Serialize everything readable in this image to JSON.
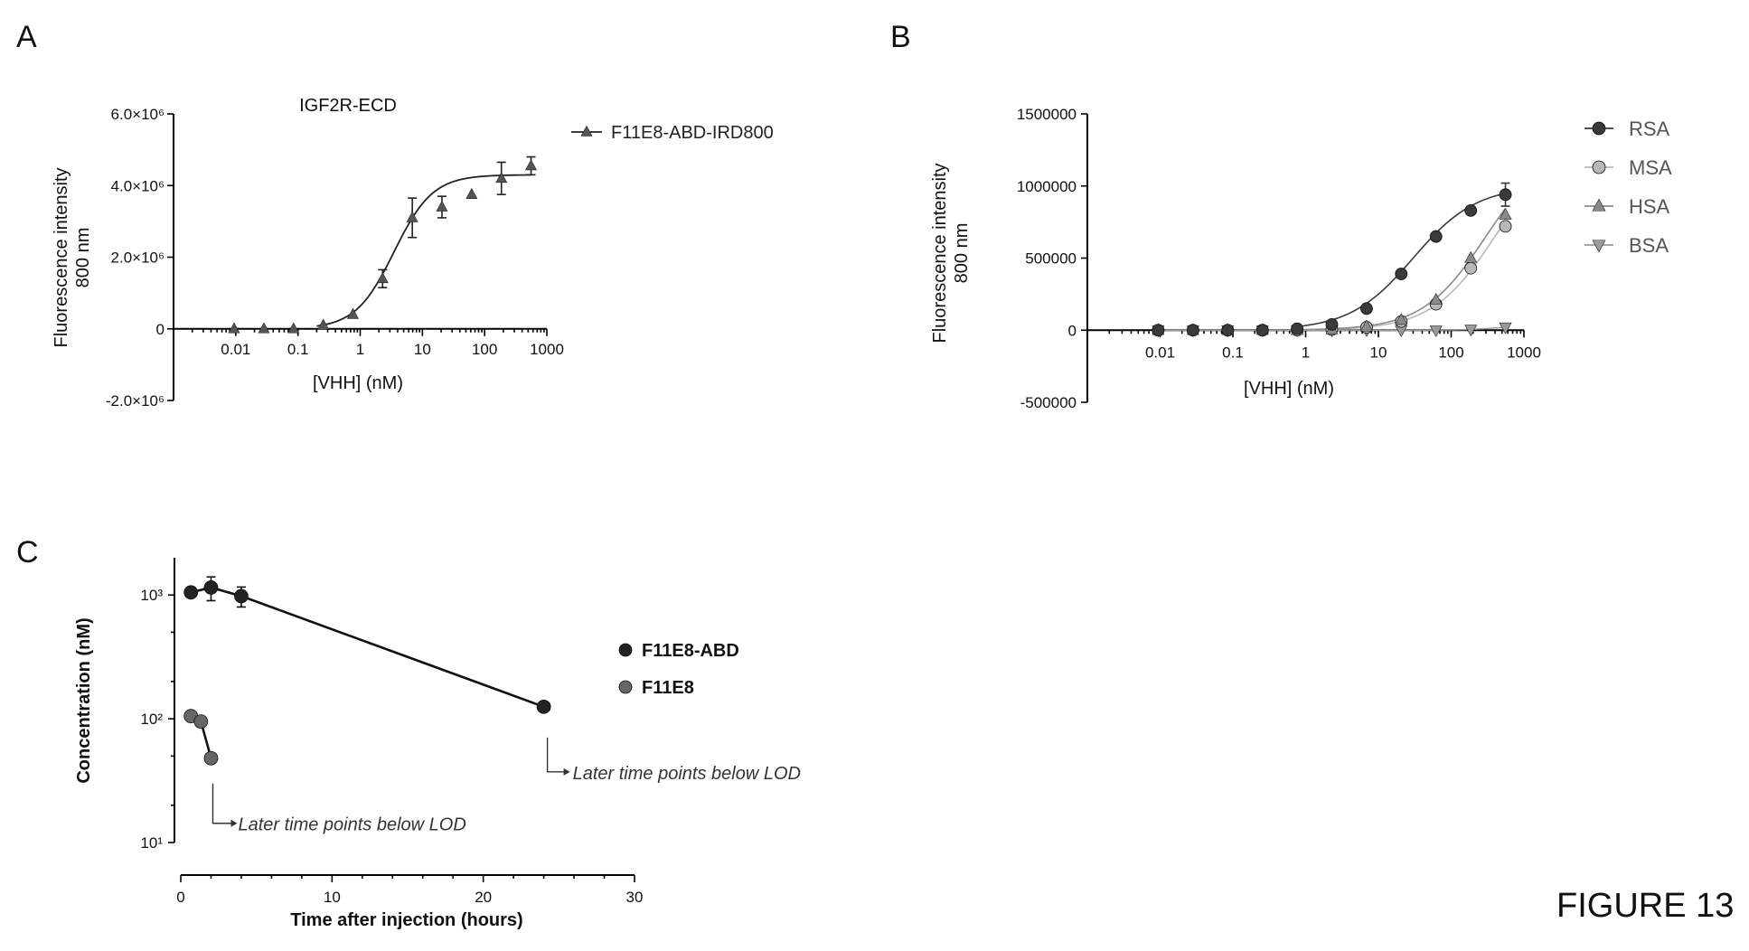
{
  "figure_label": "FIGURE 13",
  "panel_labels": {
    "A": "A",
    "B": "B",
    "C": "C"
  },
  "chart_data": [
    {
      "panel": "A",
      "type": "scatter",
      "title": "IGF2R-ECD",
      "xlabel": "[VHH] (nM)",
      "ylabel_line1": "Fluorescence intensity",
      "ylabel_line2": "800 nm",
      "x_scale": "log",
      "xlim": [
        0.001,
        1000
      ],
      "ylim": [
        -2000000,
        6000000
      ],
      "x_tick_labels": [
        {
          "value": 0.01,
          "label": "0.01"
        },
        {
          "value": 0.1,
          "label": "0.1"
        },
        {
          "value": 1,
          "label": "1"
        },
        {
          "value": 10,
          "label": "10"
        },
        {
          "value": 100,
          "label": "100"
        },
        {
          "value": 1000,
          "label": "1000"
        }
      ],
      "y_tick_labels": [
        {
          "value": 6000000,
          "label": "6.0×10⁶"
        },
        {
          "value": 4000000,
          "label": "4.0×10⁶"
        },
        {
          "value": 2000000,
          "label": "2.0×10⁶"
        },
        {
          "value": 0,
          "label": "0"
        },
        {
          "value": -2000000,
          "label": "-2.0×10⁶"
        }
      ],
      "legend_position": "right",
      "series": [
        {
          "name": "F11E8-ABD-IRD800",
          "color": "#333333",
          "marker": "triangle",
          "points": [
            {
              "x": 0.0094,
              "y": 0,
              "err": 0
            },
            {
              "x": 0.0283,
              "y": 0,
              "err": 0
            },
            {
              "x": 0.0849,
              "y": 0,
              "err": 0
            },
            {
              "x": 0.255,
              "y": 100000,
              "err": 0
            },
            {
              "x": 0.764,
              "y": 400000,
              "err": 0
            },
            {
              "x": 2.29,
              "y": 1400000,
              "err": 250000
            },
            {
              "x": 6.88,
              "y": 3100000,
              "err": 550000
            },
            {
              "x": 20.6,
              "y": 3400000,
              "err": 300000
            },
            {
              "x": 61.9,
              "y": 3750000,
              "err": 0
            },
            {
              "x": 186,
              "y": 4200000,
              "err": 450000
            },
            {
              "x": 557,
              "y": 4550000,
              "err": 250000
            }
          ],
          "fit": {
            "bottom": 0,
            "top": 4300000,
            "ec50": 3.5,
            "hill": 1.4
          }
        }
      ]
    },
    {
      "panel": "B",
      "type": "scatter",
      "xlabel": "[VHH] (nM)",
      "ylabel_line1": "Fluorescence intensity",
      "ylabel_line2": "800 nm",
      "x_scale": "log",
      "xlim": [
        0.001,
        1000
      ],
      "ylim": [
        -500000,
        1500000
      ],
      "x_tick_labels": [
        {
          "value": 0.01,
          "label": "0.01"
        },
        {
          "value": 0.1,
          "label": "0.1"
        },
        {
          "value": 1,
          "label": "1"
        },
        {
          "value": 10,
          "label": "10"
        },
        {
          "value": 100,
          "label": "100"
        },
        {
          "value": 1000,
          "label": "1000"
        }
      ],
      "y_tick_labels": [
        {
          "value": 1500000,
          "label": "1500000"
        },
        {
          "value": 1000000,
          "label": "1000000"
        },
        {
          "value": 500000,
          "label": "500000"
        },
        {
          "value": 0,
          "label": "0"
        },
        {
          "value": -500000,
          "label": "-500000"
        }
      ],
      "legend_position": "right",
      "x": [
        0.0094,
        0.0283,
        0.0849,
        0.255,
        0.764,
        2.29,
        6.88,
        20.6,
        61.9,
        186,
        557
      ],
      "series": [
        {
          "name": "RSA",
          "color": "#3a3a3a",
          "marker": "circle",
          "values": [
            0,
            0,
            0,
            0,
            10000,
            40000,
            150000,
            390000,
            650000,
            830000,
            940000
          ],
          "err": [
            0,
            0,
            0,
            0,
            0,
            0,
            0,
            0,
            0,
            0,
            80000
          ],
          "fit": {
            "bottom": 0,
            "top": 1000000,
            "ec50": 30,
            "hill": 1.0
          }
        },
        {
          "name": "MSA",
          "color": "#b8b8b8",
          "marker": "circle",
          "values": [
            0,
            0,
            0,
            0,
            0,
            5000,
            20000,
            60000,
            180000,
            430000,
            720000
          ],
          "err": [
            0,
            0,
            0,
            0,
            0,
            0,
            0,
            0,
            0,
            0,
            0
          ],
          "fit": {
            "bottom": 0,
            "top": 1300000,
            "ec50": 400,
            "hill": 1.0
          }
        },
        {
          "name": "HSA",
          "color": "#8a8a8a",
          "marker": "triangle",
          "values": [
            0,
            0,
            0,
            0,
            0,
            5000,
            25000,
            70000,
            210000,
            500000,
            800000
          ],
          "err": [
            0,
            0,
            0,
            0,
            0,
            0,
            0,
            0,
            0,
            0,
            0
          ],
          "fit": {
            "bottom": 0,
            "top": 1300000,
            "ec50": 300,
            "hill": 1.0
          }
        },
        {
          "name": "BSA",
          "color": "#9a9a9a",
          "marker": "triangle-down",
          "values": [
            0,
            0,
            0,
            0,
            0,
            0,
            0,
            0,
            0,
            5000,
            20000
          ],
          "err": [
            0,
            0,
            0,
            0,
            0,
            0,
            0,
            0,
            0,
            0,
            0
          ],
          "fit": null
        }
      ]
    },
    {
      "panel": "C",
      "type": "line",
      "xlabel": "Time after injection (hours)",
      "ylabel": "Concentration (nM)",
      "y_scale": "log",
      "xlim": [
        0,
        30
      ],
      "ylim": [
        10,
        2000
      ],
      "x_tick_labels": [
        {
          "value": 0,
          "label": "0"
        },
        {
          "value": 10,
          "label": "10"
        },
        {
          "value": 20,
          "label": "20"
        },
        {
          "value": 30,
          "label": "30"
        }
      ],
      "y_tick_labels": [
        {
          "value": 1000,
          "label": "10³"
        },
        {
          "value": 100,
          "label": "10²"
        },
        {
          "value": 10,
          "label": "10¹"
        }
      ],
      "legend_position": "right",
      "series": [
        {
          "name": "F11E8-ABD",
          "color": "#222222",
          "marker": "circle",
          "x": [
            0.67,
            2,
            4,
            24
          ],
          "values": [
            1050,
            1150,
            980,
            125
          ],
          "err": [
            0,
            250,
            180,
            0
          ]
        },
        {
          "name": "F11E8",
          "color": "#666666",
          "marker": "circle",
          "x": [
            0.67,
            1.33,
            2
          ],
          "values": [
            105,
            95,
            48
          ],
          "err": [
            0,
            0,
            0
          ]
        }
      ],
      "annotations": [
        {
          "text": "Later time points below LOD",
          "series": "F11E8-ABD"
        },
        {
          "text": "Later time points below LOD",
          "series": "F11E8"
        }
      ]
    }
  ]
}
